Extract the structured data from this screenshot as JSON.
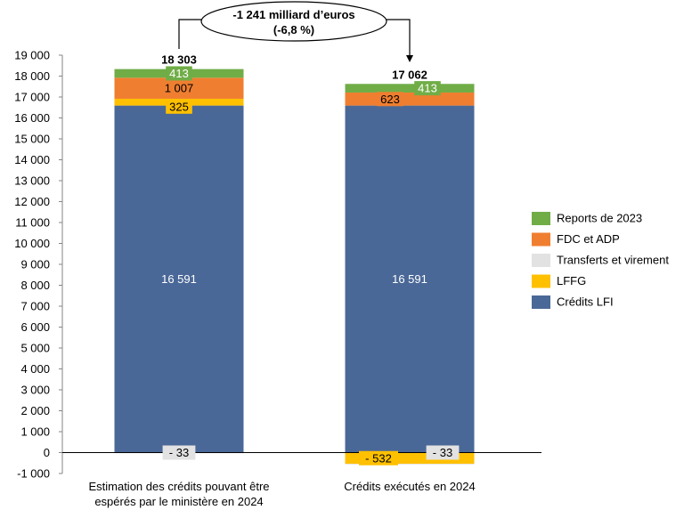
{
  "chart_data": {
    "type": "bar",
    "stacked": true,
    "categories": [
      "Estimation des crédits pouvant être espérés par le ministère en 2024",
      "Crédits exécutés en 2024"
    ],
    "category_lines": [
      [
        "Estimation des crédits pouvant être",
        "espérés par le ministère en 2024"
      ],
      [
        "Crédits exécutés en 2024"
      ]
    ],
    "series": [
      {
        "name": "Crédits LFI",
        "values": [
          16591,
          16591
        ],
        "labels": [
          "16 591",
          "16 591"
        ],
        "color": "#4a6897"
      },
      {
        "name": "LFFG",
        "values": [
          325,
          -532
        ],
        "labels": [
          "325",
          "- 532"
        ],
        "color": "#ffc000"
      },
      {
        "name": "Transferts et virement",
        "values": [
          -33,
          -33
        ],
        "labels": [
          "- 33",
          "- 33"
        ],
        "color": "#e2e2e2"
      },
      {
        "name": "FDC et ADP",
        "values": [
          1007,
          623
        ],
        "labels": [
          "1 007",
          "623"
        ],
        "color": "#f07e30"
      },
      {
        "name": "Reports de 2023",
        "values": [
          413,
          413
        ],
        "labels": [
          "413",
          "413"
        ],
        "color": "#70ad47"
      }
    ],
    "totals": [
      "18 303",
      "17 062"
    ],
    "legend_order": [
      "Reports de 2023",
      "FDC et ADP",
      "Transferts et virement",
      "LFFG",
      "Crédits LFI"
    ],
    "legend_position": "right",
    "ylim": [
      -1000,
      19000
    ],
    "ytick_step": 1000,
    "ytick_labels": [
      "-1 000",
      "0",
      "1 000",
      "2 000",
      "3 000",
      "4 000",
      "5 000",
      "6 000",
      "7 000",
      "8 000",
      "9 000",
      "10 000",
      "11 000",
      "12 000",
      "13 000",
      "14 000",
      "15 000",
      "16 000",
      "17 000",
      "18 000",
      "19 000"
    ],
    "annotation": {
      "line1": "-1 241 milliard d’euros",
      "line2": "(-6,8 %)"
    },
    "title": "",
    "xlabel": "",
    "ylabel": "",
    "grid": false
  }
}
